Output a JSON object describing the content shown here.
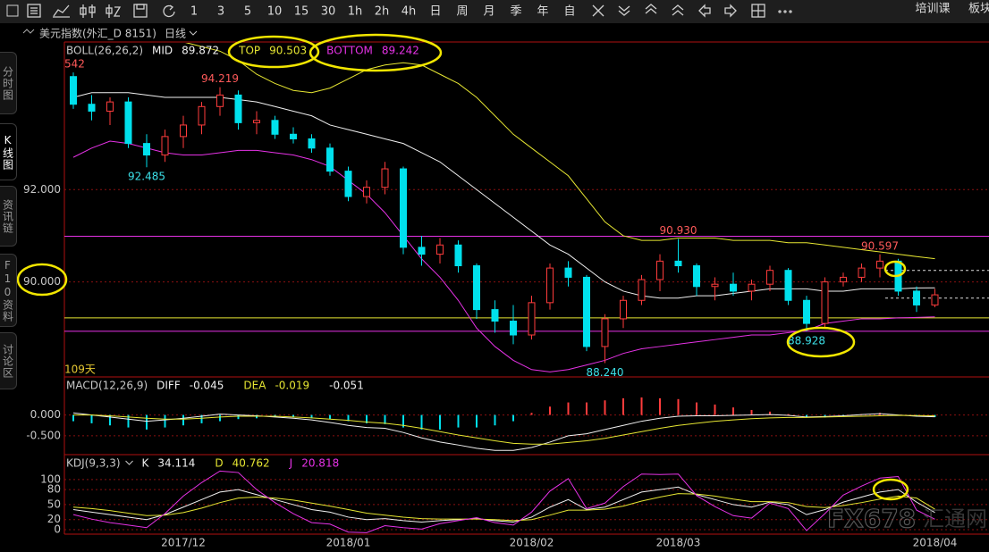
{
  "toolbar": {
    "periods": [
      "1",
      "3",
      "5",
      "10",
      "15",
      "30",
      "1h",
      "2h",
      "4h",
      "日",
      "周",
      "月",
      "季",
      "年",
      "自"
    ],
    "right": [
      "培训课",
      "板块"
    ]
  },
  "sidebar": {
    "tabs": [
      "分时图",
      "K线图",
      "资讯链",
      "F10资料",
      "讨论区"
    ]
  },
  "instrument": {
    "name": "美元指数(外汇_D 8151)",
    "period": "日线"
  },
  "watermark": [
    "FX678",
    "汇通网"
  ],
  "chart_data": [
    {
      "type": "candlestick",
      "indicator": "BOLL(26,26,2)",
      "corner_label": "542",
      "days_label": "109天",
      "up_color": "#ff3c3c",
      "down_color": "#00e0ec",
      "open": [
        94.45,
        93.85,
        93.7,
        93.9,
        93.0,
        92.75,
        93.15,
        93.4,
        93.8,
        94.05,
        93.45,
        93.5,
        93.2,
        93.1,
        92.9,
        92.4,
        91.85,
        92.05,
        92.45,
        90.75,
        90.6,
        90.8,
        90.35,
        89.4,
        89.15,
        88.85,
        89.55,
        90.3,
        90.1,
        88.6,
        89.2,
        89.6,
        90.05,
        90.45,
        90.35,
        89.9,
        89.95,
        89.8,
        89.95,
        90.25,
        89.6,
        89.1,
        90.0,
        90.1,
        90.3,
        90.45,
        89.8,
        89.5
      ],
      "high": [
        94.54,
        94.05,
        94.0,
        94.0,
        93.2,
        93.3,
        93.6,
        93.9,
        94.219,
        94.15,
        93.7,
        93.6,
        93.35,
        93.2,
        93.0,
        92.5,
        92.2,
        92.6,
        92.5,
        91.0,
        90.95,
        90.9,
        90.4,
        89.6,
        89.5,
        89.7,
        90.4,
        90.45,
        90.15,
        89.3,
        89.7,
        90.15,
        90.6,
        90.93,
        90.4,
        90.1,
        90.2,
        90.05,
        90.35,
        90.3,
        89.7,
        90.1,
        90.2,
        90.4,
        90.597,
        90.5,
        89.9,
        89.85
      ],
      "low": [
        93.75,
        93.5,
        93.4,
        92.9,
        92.485,
        92.6,
        92.9,
        93.2,
        93.6,
        93.3,
        93.2,
        93.1,
        93.0,
        92.8,
        92.3,
        91.75,
        91.7,
        91.9,
        90.6,
        90.35,
        90.4,
        90.2,
        89.2,
        88.9,
        88.65,
        88.75,
        89.4,
        89.9,
        88.5,
        88.24,
        89.0,
        89.5,
        89.8,
        90.2,
        89.7,
        89.6,
        89.7,
        89.6,
        89.8,
        89.5,
        88.928,
        89.0,
        89.9,
        90.0,
        90.1,
        89.7,
        89.35,
        89.45
      ],
      "close": [
        93.85,
        93.7,
        93.9,
        93.0,
        92.75,
        93.15,
        93.4,
        93.8,
        94.05,
        93.45,
        93.5,
        93.2,
        93.1,
        92.9,
        92.4,
        91.85,
        92.05,
        92.45,
        90.75,
        90.6,
        90.8,
        90.35,
        89.4,
        89.15,
        88.85,
        89.55,
        90.3,
        90.1,
        88.6,
        89.2,
        89.6,
        90.05,
        90.45,
        90.35,
        89.9,
        89.95,
        89.8,
        89.95,
        90.25,
        89.6,
        89.1,
        90.0,
        90.1,
        90.3,
        90.45,
        89.8,
        89.5,
        89.72
      ],
      "series": [
        {
          "name": "MID",
          "color": "#f0f0f0",
          "values": [
            94.0,
            94.1,
            94.1,
            94.1,
            94.05,
            94.0,
            94.0,
            94.0,
            94.0,
            93.95,
            93.9,
            93.8,
            93.7,
            93.6,
            93.4,
            93.3,
            93.2,
            93.1,
            93.0,
            92.8,
            92.6,
            92.3,
            92.0,
            91.7,
            91.4,
            91.1,
            90.8,
            90.6,
            90.3,
            90.0,
            89.8,
            89.7,
            89.65,
            89.65,
            89.7,
            89.7,
            89.75,
            89.8,
            89.85,
            89.85,
            89.85,
            89.8,
            89.8,
            89.85,
            89.85,
            89.85,
            89.87,
            89.872
          ]
        },
        {
          "name": "TOP",
          "color": "#e6e632",
          "values": [
            95.5,
            95.5,
            95.5,
            95.5,
            95.4,
            95.3,
            95.2,
            95.1,
            95.0,
            94.8,
            94.5,
            94.3,
            94.15,
            94.1,
            94.2,
            94.4,
            94.6,
            94.7,
            94.75,
            94.7,
            94.5,
            94.3,
            94.0,
            93.6,
            93.2,
            92.9,
            92.6,
            92.3,
            91.8,
            91.3,
            91.0,
            90.9,
            90.9,
            90.95,
            90.95,
            90.95,
            90.9,
            90.9,
            90.9,
            90.85,
            90.85,
            90.8,
            90.75,
            90.7,
            90.65,
            90.6,
            90.55,
            90.503
          ]
        },
        {
          "name": "BOTTOM",
          "color": "#e632e6",
          "values": [
            92.7,
            92.9,
            93.05,
            93.0,
            92.9,
            92.8,
            92.75,
            92.75,
            92.8,
            92.85,
            92.85,
            92.8,
            92.75,
            92.65,
            92.5,
            92.2,
            91.9,
            91.5,
            91.0,
            90.5,
            90.1,
            89.6,
            89.0,
            88.6,
            88.3,
            88.1,
            88.05,
            88.1,
            88.2,
            88.3,
            88.45,
            88.55,
            88.6,
            88.65,
            88.7,
            88.75,
            88.8,
            88.85,
            88.85,
            88.9,
            88.95,
            89.1,
            89.15,
            89.2,
            89.2,
            89.22,
            89.23,
            89.242
          ]
        }
      ],
      "price_labels": [
        "94.219",
        "92.485",
        "90.930",
        "90.597",
        "88.928",
        "88.240"
      ],
      "lines": [
        {
          "value": 90.99,
          "color": "#e632e6"
        },
        {
          "value": 89.22,
          "color": "#e6e632"
        },
        {
          "value": 88.93,
          "color": "#e632e6"
        },
        {
          "value": 90.25,
          "color": "#dddddd",
          "dashed": true
        },
        {
          "value": 89.65,
          "color": "#dddddd",
          "dashed": true
        }
      ],
      "ylim": [
        87.96,
        95.18
      ],
      "yticks": [
        {
          "value": 92,
          "label": "92.000"
        },
        {
          "value": 90,
          "label": "90.000"
        }
      ],
      "grid": true
    },
    {
      "type": "macd",
      "indicator": "MACD(12,26,9)",
      "series": [
        {
          "name": "DIFF",
          "color": "#f0f0f0",
          "values": [
            0.05,
            0.0,
            -0.05,
            -0.1,
            -0.15,
            -0.12,
            -0.08,
            -0.03,
            0.02,
            0.0,
            -0.02,
            -0.05,
            -0.08,
            -0.12,
            -0.18,
            -0.25,
            -0.3,
            -0.32,
            -0.42,
            -0.55,
            -0.65,
            -0.72,
            -0.8,
            -0.85,
            -0.85,
            -0.78,
            -0.65,
            -0.5,
            -0.45,
            -0.35,
            -0.25,
            -0.15,
            -0.08,
            -0.03,
            -0.02,
            -0.02,
            -0.01,
            0.0,
            0.01,
            -0.01,
            -0.05,
            -0.04,
            -0.02,
            0.01,
            0.03,
            0.0,
            -0.03,
            -0.045
          ]
        },
        {
          "name": "DEA",
          "color": "#e6e632",
          "values": [
            0.0,
            0.0,
            -0.02,
            -0.05,
            -0.08,
            -0.1,
            -0.1,
            -0.08,
            -0.05,
            -0.03,
            -0.03,
            -0.03,
            -0.05,
            -0.07,
            -0.1,
            -0.13,
            -0.17,
            -0.2,
            -0.25,
            -0.32,
            -0.4,
            -0.48,
            -0.55,
            -0.62,
            -0.68,
            -0.7,
            -0.7,
            -0.66,
            -0.62,
            -0.56,
            -0.48,
            -0.4,
            -0.32,
            -0.25,
            -0.2,
            -0.15,
            -0.12,
            -0.09,
            -0.07,
            -0.06,
            -0.06,
            -0.05,
            -0.04,
            -0.03,
            -0.02,
            -0.01,
            -0.015,
            -0.019
          ]
        }
      ],
      "histogram": {
        "up_color": "#ff3c3c",
        "down_color": "#00e0ec",
        "values": [
          -0.15,
          -0.2,
          -0.25,
          -0.3,
          -0.35,
          -0.3,
          -0.25,
          -0.2,
          -0.15,
          -0.1,
          -0.08,
          -0.05,
          -0.05,
          -0.08,
          -0.1,
          -0.15,
          -0.2,
          -0.22,
          -0.3,
          -0.35,
          -0.35,
          -0.3,
          -0.3,
          -0.25,
          -0.15,
          0.05,
          0.2,
          0.3,
          0.3,
          0.35,
          0.4,
          0.42,
          0.4,
          0.38,
          0.3,
          0.25,
          0.18,
          0.12,
          0.08,
          0.02,
          -0.05,
          -0.06,
          -0.03,
          0.02,
          0.05,
          0.0,
          -0.04,
          -0.051
        ]
      },
      "ylim": [
        -0.93,
        0.89
      ],
      "yticks": [
        {
          "value": 0,
          "label": "0.000"
        },
        {
          "value": -0.5,
          "label": "-0.500"
        }
      ],
      "grid": true
    },
    {
      "type": "line",
      "indicator": "KDJ(9,3,3)",
      "categories": [
        null,
        null,
        null,
        null,
        null,
        null,
        "2017/12",
        null,
        null,
        null,
        null,
        null,
        null,
        null,
        null,
        "2018/01",
        null,
        null,
        null,
        null,
        null,
        null,
        null,
        null,
        null,
        "2018/02",
        null,
        null,
        null,
        null,
        null,
        null,
        null,
        "2018/03",
        null,
        null,
        null,
        null,
        null,
        null,
        null,
        null,
        null,
        null,
        null,
        null,
        null,
        "2018/04"
      ],
      "series": [
        {
          "name": "K",
          "color": "#f0f0f0",
          "values": [
            40,
            35,
            30,
            25,
            20,
            30,
            45,
            60,
            75,
            80,
            70,
            60,
            50,
            40,
            35,
            25,
            20,
            22,
            18,
            15,
            18,
            20,
            22,
            18,
            15,
            25,
            45,
            60,
            40,
            45,
            60,
            75,
            80,
            85,
            70,
            60,
            50,
            45,
            55,
            50,
            30,
            40,
            55,
            65,
            75,
            80,
            55,
            34.114
          ]
        },
        {
          "name": "D",
          "color": "#e6e632",
          "values": [
            45,
            42,
            38,
            33,
            28,
            29,
            34,
            43,
            54,
            63,
            65,
            63,
            59,
            53,
            47,
            40,
            33,
            29,
            25,
            22,
            21,
            21,
            21,
            20,
            18,
            20,
            29,
            39,
            39,
            41,
            47,
            57,
            65,
            72,
            71,
            67,
            61,
            56,
            56,
            54,
            46,
            44,
            48,
            54,
            61,
            67,
            63,
            40.762
          ]
        },
        {
          "name": "J",
          "color": "#e632e6",
          "values": [
            30,
            21,
            14,
            9,
            4,
            32,
            67,
            94,
            117,
            114,
            80,
            54,
            32,
            14,
            11,
            -5,
            -6,
            8,
            4,
            1,
            12,
            18,
            24,
            14,
            9,
            35,
            77,
            102,
            42,
            53,
            86,
            111,
            110,
            111,
            68,
            46,
            28,
            23,
            53,
            42,
            -2,
            32,
            69,
            87,
            103,
            106,
            39,
            20.818
          ]
        }
      ],
      "ylim": [
        -9,
        148
      ],
      "yticks": [
        0,
        20,
        50,
        80,
        100
      ],
      "grid": true
    }
  ]
}
